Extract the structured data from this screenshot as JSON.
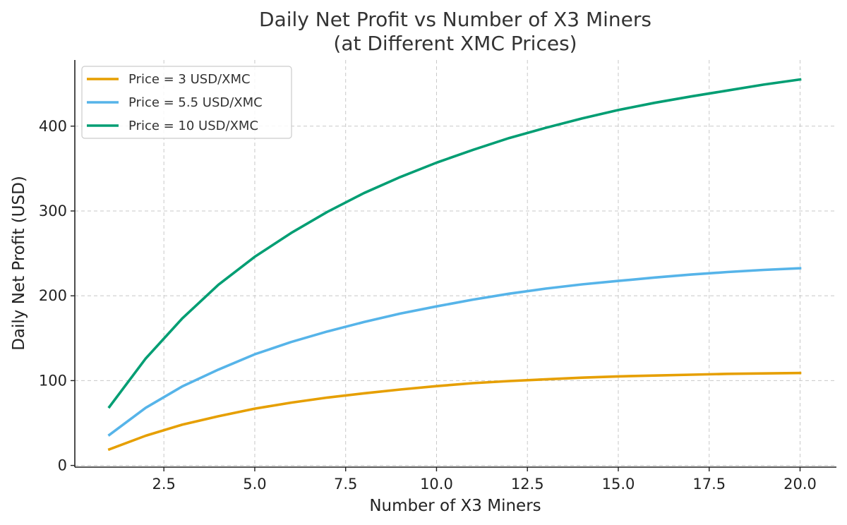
{
  "chart_data": {
    "type": "line",
    "title": [
      "Daily Net Profit vs Number of X3 Miners",
      "(at Different XMC Prices)"
    ],
    "xlabel": "Number of X3 Miners",
    "ylabel": "Daily Net Profit (USD)",
    "xlim": [
      0.05,
      21
    ],
    "ylim": [
      -2,
      478
    ],
    "xticks": [
      2.5,
      5.0,
      7.5,
      10.0,
      12.5,
      15.0,
      17.5,
      20.0
    ],
    "xtick_labels": [
      "2.5",
      "5.0",
      "7.5",
      "10.0",
      "12.5",
      "15.0",
      "17.5",
      "20.0"
    ],
    "yticks": [
      0,
      100,
      200,
      300,
      400
    ],
    "ytick_labels": [
      "0",
      "100",
      "200",
      "300",
      "400"
    ],
    "grid": true,
    "legend_position": "top-left",
    "x": [
      1,
      2,
      3,
      4,
      5,
      6,
      7,
      8,
      9,
      10,
      11,
      12,
      13,
      14,
      15,
      16,
      17,
      18,
      19,
      20
    ],
    "series": [
      {
        "name": "Price = 3 USD/XMC",
        "color": "#e69f00",
        "values": [
          19,
          35,
          48,
          58,
          67,
          74,
          80,
          85,
          89.5,
          93.5,
          97,
          99.5,
          101.5,
          103.5,
          105,
          106,
          107,
          108,
          108.5,
          109
        ]
      },
      {
        "name": "Price = 5.5 USD/XMC",
        "color": "#56b4e9",
        "values": [
          36,
          68,
          93,
          113,
          131,
          145.5,
          158,
          169,
          179,
          187.5,
          195.5,
          202.5,
          208.5,
          213.5,
          217.5,
          221.5,
          225,
          228,
          230.5,
          232.5
        ]
      },
      {
        "name": "Price = 10 USD/XMC",
        "color": "#009e73",
        "values": [
          69,
          126,
          173,
          213,
          246,
          274,
          299,
          321,
          340,
          357,
          372,
          386,
          398,
          409,
          419,
          427.5,
          435,
          442,
          449,
          455
        ]
      }
    ]
  }
}
